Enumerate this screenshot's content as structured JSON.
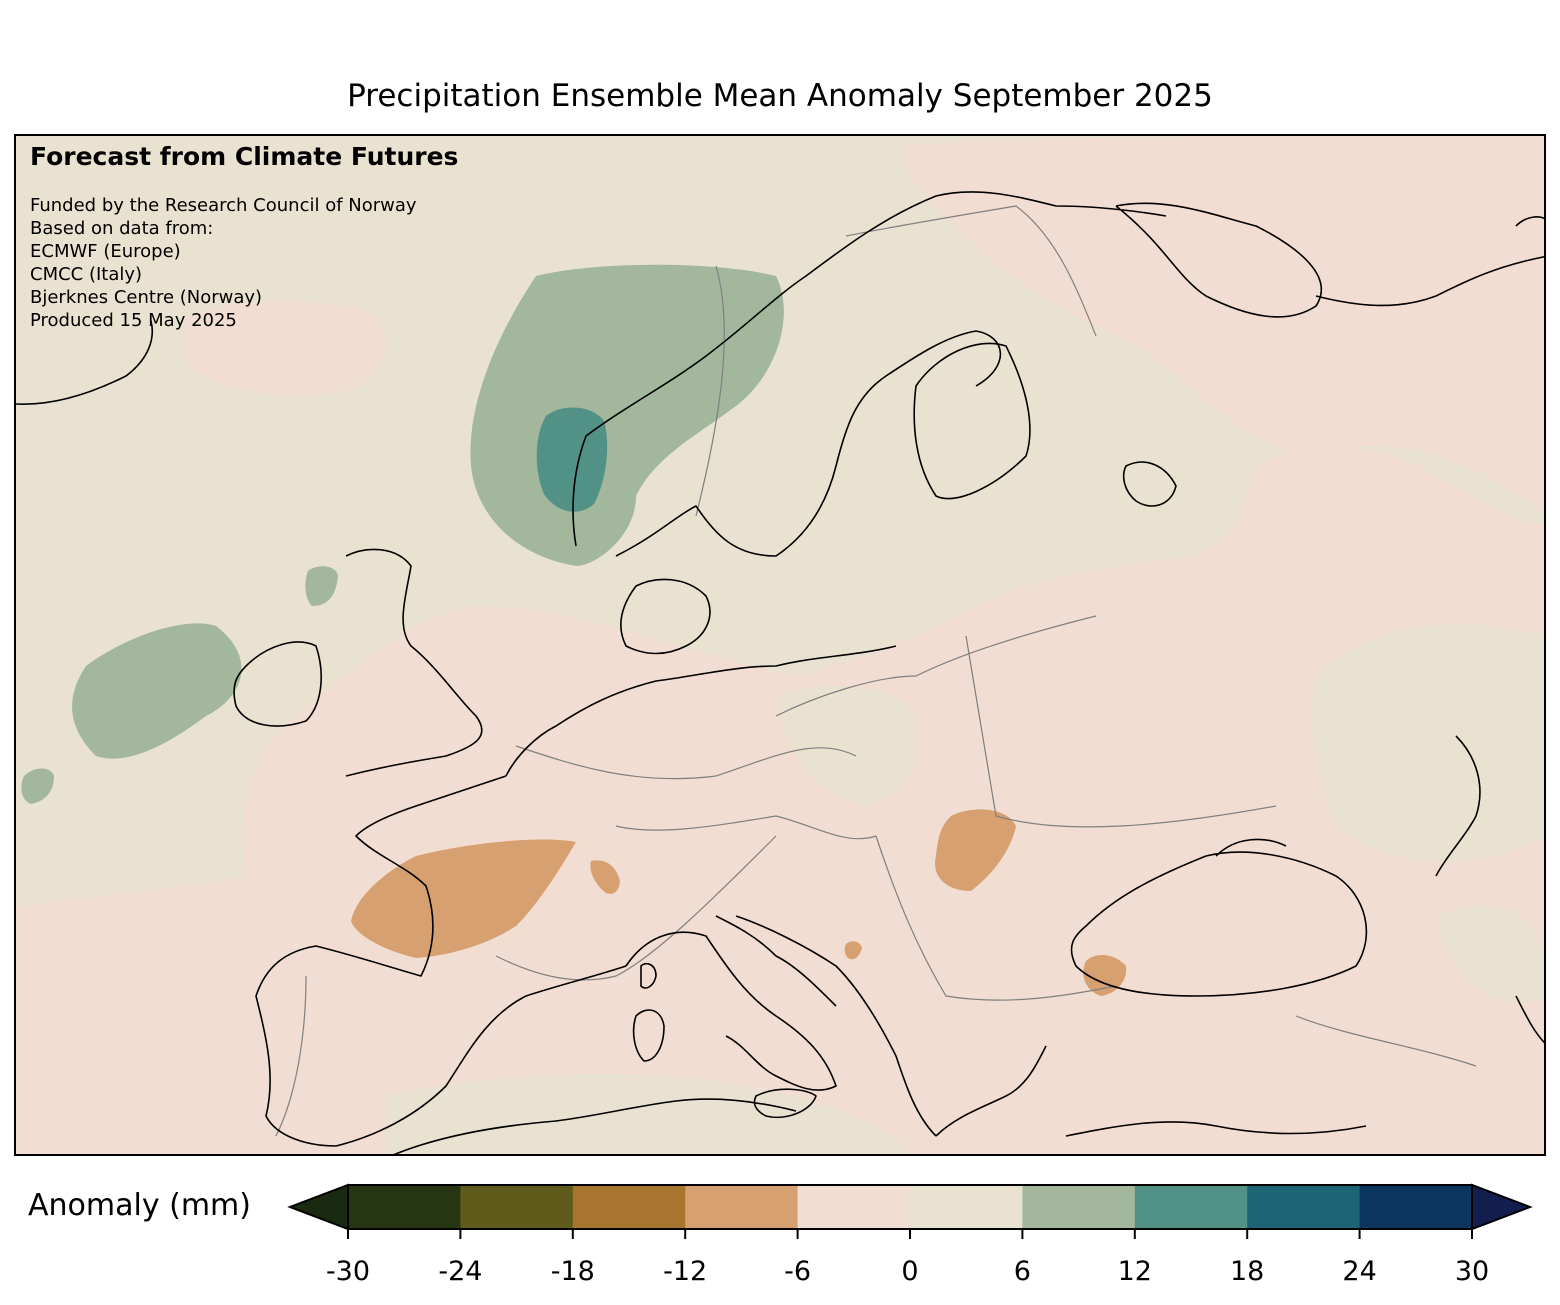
{
  "title": "Precipitation Ensemble Mean Anomaly September 2025",
  "annotation": {
    "heading": "Forecast from Climate Futures",
    "lines": [
      "Funded by the Research Council of Norway",
      "Based on data from:",
      "ECMWF (Europe)",
      "CMCC (Italy)",
      "Bjerknes Centre (Norway)",
      "Produced 15 May 2025"
    ]
  },
  "colorbar": {
    "label": "Anomaly (mm)",
    "ticks": [
      "-30",
      "-24",
      "-18",
      "-12",
      "-6",
      "0",
      "6",
      "12",
      "18",
      "24",
      "30"
    ],
    "colors": [
      "#263612",
      "#5e5b1b",
      "#a8752f",
      "#d6a070",
      "#f1ddd1",
      "#e9e2d1",
      "#a2b79c",
      "#529185",
      "#1d6574",
      "#0c355f"
    ],
    "under_color": "#1a2a10",
    "over_color": "#121f4e",
    "extend": "both"
  },
  "map_colors": {
    "ocean_neutral": "#e9e2d1",
    "dry_light": "#f1ddd1",
    "dry_medium": "#d6a070",
    "wet_light": "#a2b79c",
    "wet_medium": "#529185",
    "coastline": "#000000",
    "borders": "#808080"
  }
}
